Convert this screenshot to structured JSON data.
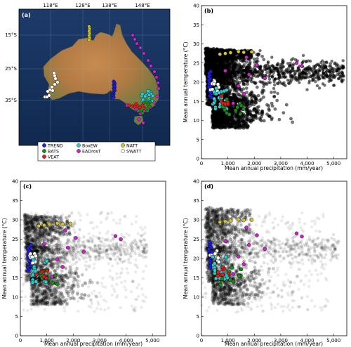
{
  "chart_data": [
    {
      "panel": "(a)",
      "type": "map",
      "top_ticks": [
        "118°E",
        "128°E",
        "138°E",
        "148°E"
      ],
      "left_ticks": [
        "15°S",
        "25°S",
        "35°S"
      ],
      "legend": [
        {
          "name": "TREND",
          "color": "#1f1fd6"
        },
        {
          "name": "BoxEW",
          "color": "#33cccc"
        },
        {
          "name": "NATT",
          "color": "#d4c426"
        },
        {
          "name": "BATS",
          "color": "#1d8a1d"
        },
        {
          "name": "EADrosT",
          "color": "#cc22cc"
        },
        {
          "name": "SWATT",
          "color": "#ffffff"
        },
        {
          "name": "VEAT",
          "color": "#e01b1b"
        }
      ]
    },
    {
      "panel": "(b)",
      "type": "scatter",
      "xlabel": "Mean annual precipitation (mm/year)",
      "ylabel": "Mean annual temperature (°C)",
      "xlim": [
        0,
        5500
      ],
      "ylim": [
        0,
        40
      ],
      "xticks": [
        "0",
        "1,000",
        "2,000",
        "3,000",
        "4,000",
        "5,000"
      ],
      "yticks": [
        "0",
        "5",
        "10",
        "15",
        "20",
        "25",
        "30",
        "35",
        "40"
      ]
    },
    {
      "panel": "(c)",
      "type": "scatter",
      "xlabel": "Mean annual precipitation (mm/year)",
      "ylabel": "Mean annual temperature (°C)",
      "xlim": [
        0,
        5500
      ],
      "ylim": [
        0,
        40
      ],
      "xticks": [
        "0",
        "1,000",
        "2,000",
        "3,000",
        "4,000",
        "5,000"
      ],
      "yticks": [
        "0",
        "5",
        "10",
        "15",
        "20",
        "25",
        "30",
        "35",
        "40"
      ]
    },
    {
      "panel": "(d)",
      "type": "scatter",
      "xlabel": "Mean annual precipitation (mm/year)",
      "ylabel": "Mean annual temperature (°C)",
      "xlim": [
        0,
        5500
      ],
      "ylim": [
        0,
        40
      ],
      "xticks": [
        "0",
        "1,000",
        "2,000",
        "3,000",
        "4,000",
        "5,000"
      ],
      "yticks": [
        "0",
        "5",
        "10",
        "15",
        "20",
        "25",
        "30",
        "35",
        "40"
      ]
    }
  ]
}
